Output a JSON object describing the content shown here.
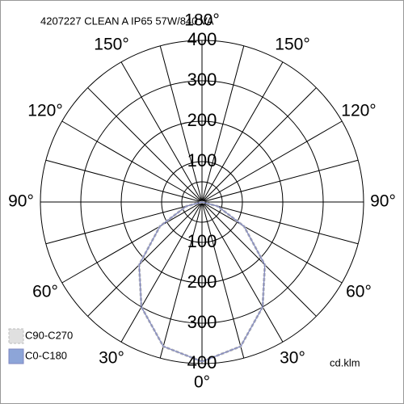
{
  "chart_data": {
    "type": "polar",
    "title": "4207227 CLEAN A IP65 57W/840 VA",
    "unit": "cd.klm",
    "rlim": [
      0,
      400
    ],
    "rticks": [
      100,
      200,
      300,
      400
    ],
    "angle_ticks": [
      {
        "value": 0,
        "label": "0°"
      },
      {
        "value": 30,
        "label": "30°"
      },
      {
        "value": -30,
        "label": "30°"
      },
      {
        "value": 60,
        "label": "60°"
      },
      {
        "value": -60,
        "label": "60°"
      },
      {
        "value": 90,
        "label": "90°"
      },
      {
        "value": -90,
        "label": "90°"
      },
      {
        "value": 120,
        "label": "120°"
      },
      {
        "value": -120,
        "label": "120°"
      },
      {
        "value": 150,
        "label": "150°"
      },
      {
        "value": -150,
        "label": "150°"
      },
      {
        "value": 180,
        "label": "180°"
      }
    ],
    "angles": [
      -90,
      -75,
      -60,
      -45,
      -30,
      -15,
      0,
      15,
      30,
      45,
      60,
      75,
      90
    ],
    "series": [
      {
        "name": "C90-C270",
        "color": "#bdbdbd",
        "values": [
          0,
          40,
          120,
          220,
          300,
          370,
          395,
          370,
          300,
          220,
          120,
          40,
          0
        ]
      },
      {
        "name": "C0-C180",
        "color": "#7f86c0",
        "values": [
          0,
          40,
          120,
          220,
          300,
          370,
          395,
          370,
          300,
          220,
          120,
          40,
          0
        ]
      }
    ]
  }
}
